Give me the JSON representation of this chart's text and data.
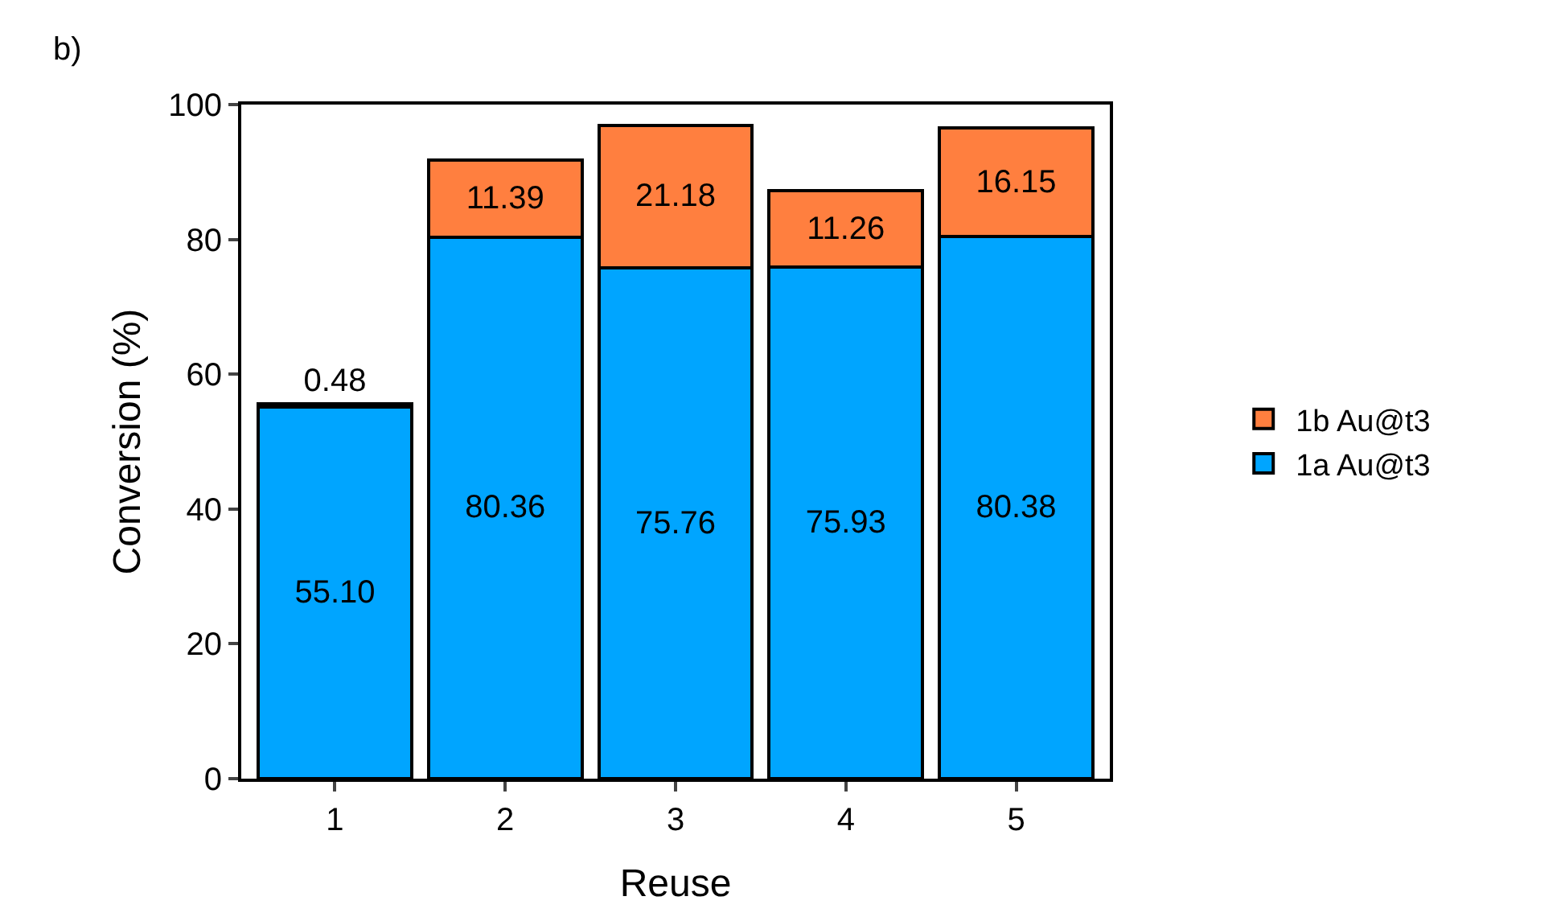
{
  "chart_data": {
    "type": "bar",
    "stacked": true,
    "xlabel": "Reuse",
    "ylabel": "Conversion (%)",
    "categories": [
      "1",
      "2",
      "3",
      "4",
      "5"
    ],
    "series": [
      {
        "name": "1a Au@t3",
        "color": "#00a5ff",
        "values": [
          55.1,
          80.36,
          75.76,
          75.93,
          80.38
        ],
        "value_labels": [
          "55.10",
          "80.36",
          "75.76",
          "75.93",
          "80.38"
        ]
      },
      {
        "name": "1b Au@t3",
        "color": "#ff7f3f",
        "values": [
          0.48,
          11.39,
          21.18,
          11.26,
          16.15
        ],
        "value_labels": [
          "0.48",
          "11.39",
          "21.18",
          "11.26",
          "16.15"
        ]
      }
    ],
    "ylim": [
      0,
      100
    ],
    "yticks": [
      0,
      20,
      40,
      60,
      80,
      100
    ],
    "legend": "right",
    "annotations": [
      "b)"
    ]
  }
}
